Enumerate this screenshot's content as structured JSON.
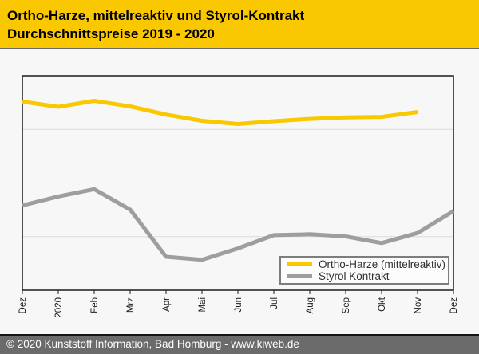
{
  "header": {
    "title_line1": "Ortho-Harze, mittelreaktiv und Styrol-Kontrakt",
    "title_line2": "Durchschnittspreise 2019 - 2020"
  },
  "footer": {
    "text": "© 2020 Kunststoff Information, Bad Homburg - www.kiweb.de"
  },
  "colors": {
    "header_bg": "#FAC800",
    "footer_bg": "#6B6B6B",
    "plot_border": "#1A1A1A",
    "gridline": "#DCDCDC",
    "ortho_harze_line": "#FAC800",
    "styrol_kontrakt_line": "#9E9E9E"
  },
  "legend": {
    "items": [
      {
        "label": "Ortho-Harze (mittelreaktiv)",
        "color": "#FAC800"
      },
      {
        "label": "Styrol Kontrakt",
        "color": "#9E9E9E"
      }
    ]
  },
  "chart_data": {
    "type": "line",
    "title": "Ortho-Harze, mittelreaktiv und Styrol-Kontrakt — Durchschnittspreise 2019 - 2020",
    "categories": [
      "Dez",
      "2020",
      "Feb",
      "Mrz",
      "Apr",
      "Mai",
      "Jun",
      "Jul",
      "Aug",
      "Sep",
      "Okt",
      "Nov",
      "Dez"
    ],
    "xlabel": "",
    "ylabel": "",
    "y_axis": {
      "tick_labels_visible": false,
      "unit": "percent of plot height (chart displays no numeric y-axis labels)",
      "range": [
        0,
        100
      ],
      "gridlines_at": [
        25,
        50,
        75
      ]
    },
    "grid": "horizontal only",
    "legend_position": "inside plot, bottom-right",
    "series": [
      {
        "name": "Ortho-Harze (mittelreaktiv)",
        "color": "#FAC800",
        "values": [
          87.9,
          85.5,
          88.3,
          85.7,
          81.9,
          79.0,
          77.5,
          78.8,
          79.9,
          80.6,
          80.8,
          83.1,
          null
        ]
      },
      {
        "name": "Styrol Kontrakt",
        "color": "#9E9E9E",
        "values": [
          39.5,
          43.7,
          47.1,
          37.6,
          15.6,
          14.2,
          19.5,
          25.7,
          26.1,
          25.1,
          22.0,
          26.7,
          36.9
        ]
      }
    ]
  }
}
